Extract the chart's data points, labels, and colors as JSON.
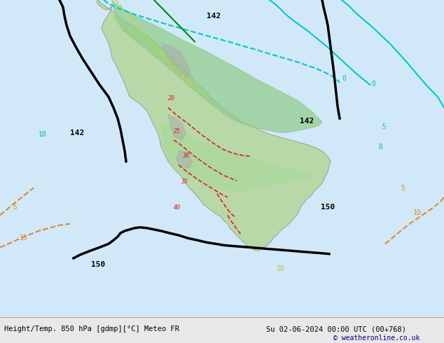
{
  "title_left": "Height/Temp. 850 hPa [gdmp][°C] Meteo FR",
  "title_right": "Su 02-06-2024 00:00 UTC (00+768)",
  "copyright": "© weatheronline.co.uk",
  "bg_color": "#e8e8e8",
  "land_color": "#aad4a0",
  "water_color": "#c8dff0",
  "gray_color": "#b0b0b0",
  "figsize": [
    6.34,
    4.9
  ],
  "dpi": 100
}
